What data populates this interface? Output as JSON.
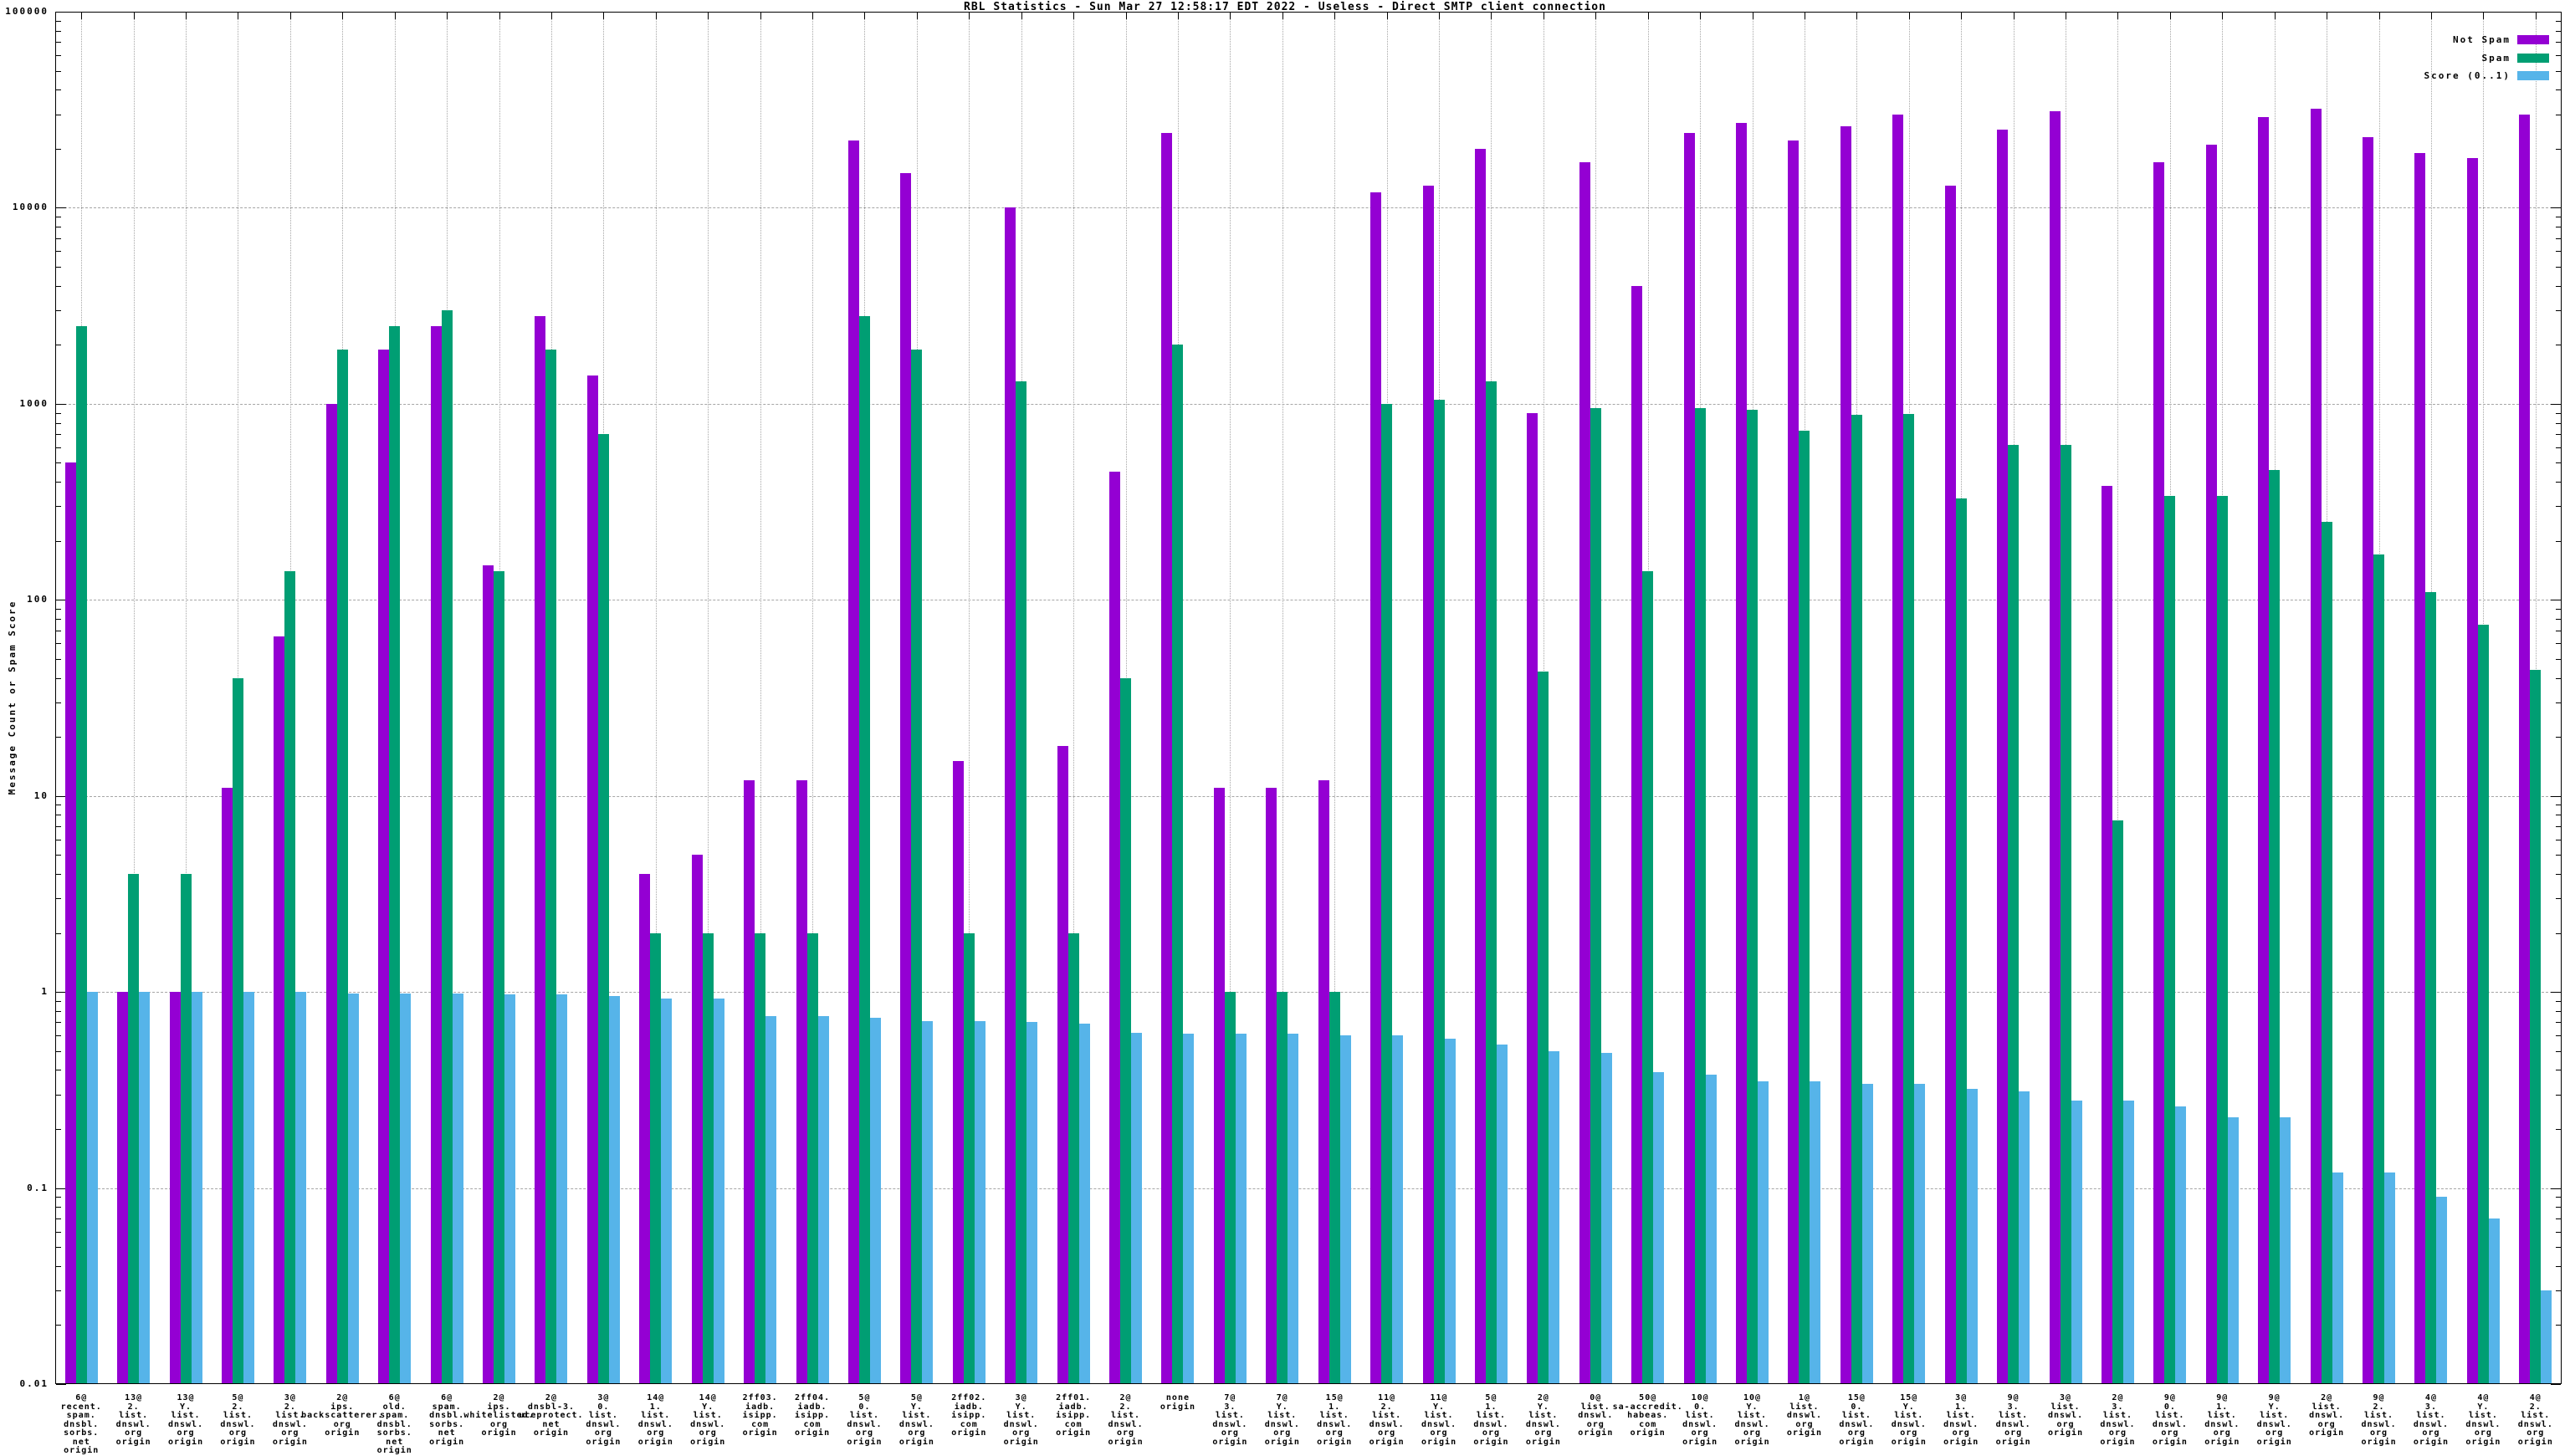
{
  "title": "RBL Statistics - Sun Mar 27 12:58:17 EDT 2022 - Useless - Direct SMTP client connection",
  "y_axis": {
    "label": "Message Count or Spam Score",
    "ticks": [
      "100000",
      "10000",
      "1000",
      "100",
      "10",
      "1",
      "0.1",
      "0.01"
    ]
  },
  "legend": {
    "entries": [
      {
        "label": "Not Spam",
        "color": "#9400d3"
      },
      {
        "label": "Spam",
        "color": "#009e73"
      },
      {
        "label": "Score (0..1)",
        "color": "#56b4e9"
      }
    ]
  },
  "chart_data": {
    "type": "bar",
    "scale": "log",
    "ylim": [
      0.01,
      100000
    ],
    "grid": true,
    "legend_position": "top-right",
    "title": "RBL Statistics - Sun Mar 27 12:58:17 EDT 2022 - Useless - Direct SMTP client connection",
    "xlabel": "",
    "ylabel": "Message Count or Spam Score",
    "categories": [
      "6@\nrecent.\nspam.\ndnsbl.\nsorbs.\nnet\norigin",
      "13@\n2.\nlist.\ndnswl.\norg\norigin",
      "13@\nY.\nlist.\ndnswl.\norg\norigin",
      "5@\n2.\nlist.\ndnswl.\norg\norigin",
      "3@\n2.\nlist.\ndnswl.\norg\norigin",
      "2@\nips.\nbackscatterer.\norg\norigin",
      "6@\nold.\nspam.\ndnsbl.\nsorbs.\nnet\norigin",
      "6@\nspam.\ndnsbl.\nsorbs.\nnet\norigin",
      "2@\nips.\nwhitelisted.\norg\norigin",
      "2@\ndnsbl-3.\nuceprotect.\nnet\norigin",
      "3@\n0.\nlist.\ndnswl.\norg\norigin",
      "14@\n1.\nlist.\ndnswl.\norg\norigin",
      "14@\nY.\nlist.\ndnswl.\norg\norigin",
      "2ff03.\niadb.\nisipp.\ncom\norigin",
      "2ff04.\niadb.\nisipp.\ncom\norigin",
      "5@\n0.\nlist.\ndnswl.\norg\norigin",
      "5@\nY.\nlist.\ndnswl.\norg\norigin",
      "2ff02.\niadb.\nisipp.\ncom\norigin",
      "3@\nY.\nlist.\ndnswl.\norg\norigin",
      "2ff01.\niadb.\nisipp.\ncom\norigin",
      "2@\n2.\nlist.\ndnswl.\norg\norigin",
      "none\norigin",
      "7@\n3.\nlist.\ndnswl.\norg\norigin",
      "7@\nY.\nlist.\ndnswl.\norg\norigin",
      "15@\n1.\nlist.\ndnswl.\norg\norigin",
      "11@\n2.\nlist.\ndnswl.\norg\norigin",
      "11@\nY.\nlist.\ndnswl.\norg\norigin",
      "5@\n1.\nlist.\ndnswl.\norg\norigin",
      "2@\nY.\nlist.\ndnswl.\norg\norigin",
      "0@\nlist.\ndnswl.\norg\norigin",
      "50@\nsa-accredit.\nhabeas.\ncom\norigin",
      "10@\n0.\nlist.\ndnswl.\norg\norigin",
      "10@\nY.\nlist.\ndnswl.\norg\norigin",
      "1@\nlist.\ndnswl.\norg\norigin",
      "15@\n0.\nlist.\ndnswl.\norg\norigin",
      "15@\nY.\nlist.\ndnswl.\norg\norigin",
      "3@\n1.\nlist.\ndnswl.\norg\norigin",
      "9@\n3.\nlist.\ndnswl.\norg\norigin",
      "3@\nlist.\ndnswl.\norg\norigin",
      "2@\n3.\nlist.\ndnswl.\norg\norigin",
      "9@\n0.\nlist.\ndnswl.\norg\norigin",
      "9@\n1.\nlist.\ndnswl.\norg\norigin",
      "9@\nY.\nlist.\ndnswl.\norg\norigin",
      "2@\nlist.\ndnswl.\norg\norigin",
      "9@\n2.\nlist.\ndnswl.\norg\norigin",
      "4@\n3.\nlist.\ndnswl.\norg\norigin",
      "4@\nY.\nlist.\ndnswl.\norg\norigin",
      "4@\n2.\nlist.\ndnswl.\norg\norigin"
    ],
    "series": [
      {
        "name": "Not Spam",
        "color": "#9400d3",
        "values": [
          500,
          1,
          1,
          11,
          65,
          1000,
          1900,
          2500,
          150,
          2800,
          1400,
          4,
          5,
          12,
          12,
          22000,
          15000,
          15,
          10000,
          18,
          450,
          24000,
          11,
          11,
          12,
          12000,
          13000,
          20000,
          900,
          17000,
          4000,
          24000,
          27000,
          22000,
          26000,
          30000,
          13000,
          25000,
          31000,
          380,
          17000,
          21000,
          29000,
          32000,
          23000,
          19000,
          18000,
          30000
        ]
      },
      {
        "name": "Spam",
        "color": "#009e73",
        "values": [
          2500,
          4,
          4,
          40,
          140,
          1900,
          2500,
          3000,
          140,
          1900,
          700,
          2,
          2,
          2,
          2,
          2800,
          1900,
          2,
          1300,
          2,
          40,
          2000,
          1,
          1,
          1,
          1000,
          1050,
          1300,
          43,
          950,
          140,
          950,
          930,
          730,
          880,
          890,
          330,
          620,
          620,
          7.5,
          340,
          340,
          460,
          250,
          170,
          110,
          75,
          44
        ]
      },
      {
        "name": "Score (0..1)",
        "color": "#56b4e9",
        "values": [
          1.0,
          1.0,
          1.0,
          1.0,
          1.0,
          0.98,
          0.98,
          0.98,
          0.97,
          0.97,
          0.95,
          0.93,
          0.93,
          0.75,
          0.75,
          0.74,
          0.71,
          0.71,
          0.7,
          0.69,
          0.62,
          0.61,
          0.61,
          0.61,
          0.6,
          0.6,
          0.58,
          0.54,
          0.5,
          0.49,
          0.39,
          0.38,
          0.35,
          0.35,
          0.34,
          0.34,
          0.32,
          0.31,
          0.28,
          0.28,
          0.26,
          0.23,
          0.23,
          0.12,
          0.12,
          0.09,
          0.07,
          0.03
        ]
      }
    ]
  }
}
